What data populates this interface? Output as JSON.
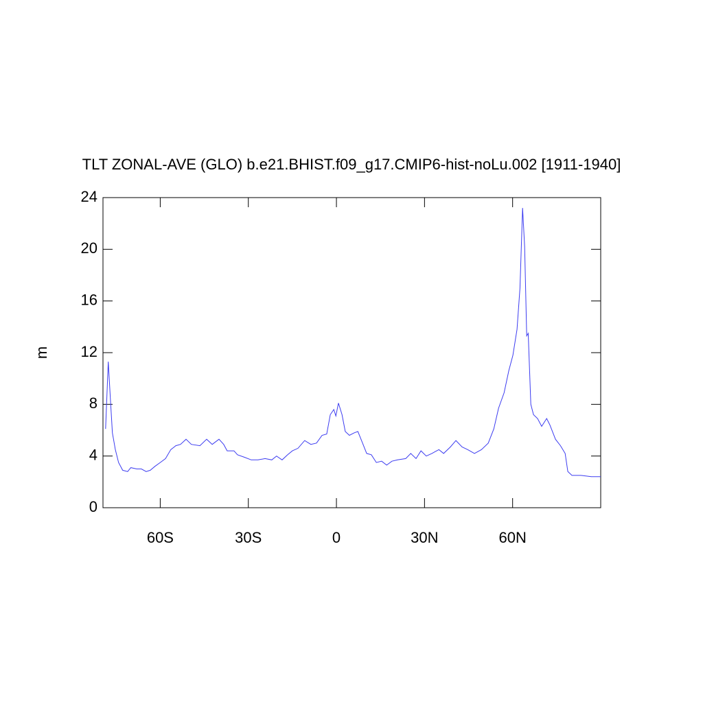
{
  "chart_data": {
    "type": "line",
    "title": "TLT ZONAL-AVE (GLO) b.e21.BHIST.f09_g17.CMIP6-hist-noLu.002 [1911-1940]",
    "y_label": "m",
    "x": [
      -78.6,
      -77.7,
      -77,
      -76.3,
      -75.3,
      -74.2,
      -72.8,
      -71.1,
      -70,
      -68,
      -66.4,
      -64.8,
      -63.4,
      -61.8,
      -60,
      -58.2,
      -56.4,
      -54.7,
      -53.1,
      -51.2,
      -49.4,
      -46.5,
      -44.2,
      -42.3,
      -40,
      -38.4,
      -37.2,
      -34.9,
      -33.7,
      -31.3,
      -29,
      -26.7,
      -24.3,
      -22,
      -20.4,
      -18.5,
      -16.6,
      -15,
      -13.1,
      -10.8,
      -8.7,
      -6.8,
      -4.9,
      -3.3,
      -2.1,
      -0.9,
      -0.2,
      0.7,
      1.9,
      3,
      4.4,
      6.1,
      7.3,
      8.9,
      10.3,
      11.9,
      13.6,
      15.4,
      17.1,
      18.9,
      20.8,
      23.6,
      25.3,
      27.1,
      28.8,
      30.6,
      32.5,
      34.9,
      36.5,
      38.8,
      40.7,
      42.8,
      44.7,
      47,
      49.4,
      51.7,
      53.6,
      55.2,
      57.1,
      58.7,
      60.1,
      61.5,
      62.5,
      63.4,
      64.1,
      64.8,
      65.3,
      66.2,
      67.1,
      68.5,
      69.9,
      71.6,
      72.7,
      74.6,
      76.3,
      77.9,
      78.8,
      80.2,
      83.3,
      86.8,
      90
    ],
    "series": [
      {
        "name": "TLT",
        "color": "#3b3bf0",
        "values": [
          6.1,
          11.3,
          8.5,
          5.8,
          4.5,
          3.5,
          2.9,
          2.8,
          3.1,
          3.0,
          3.0,
          2.8,
          2.9,
          3.2,
          3.5,
          3.8,
          4.5,
          4.8,
          4.9,
          5.3,
          4.9,
          4.8,
          5.3,
          4.9,
          5.3,
          4.9,
          4.4,
          4.4,
          4.1,
          3.9,
          3.7,
          3.7,
          3.8,
          3.7,
          4.0,
          3.7,
          4.1,
          4.4,
          4.6,
          5.2,
          4.9,
          5.0,
          5.6,
          5.7,
          7.2,
          7.6,
          7.1,
          8.1,
          7.2,
          5.9,
          5.6,
          5.8,
          5.9,
          5.0,
          4.2,
          4.1,
          3.5,
          3.6,
          3.3,
          3.6,
          3.7,
          3.8,
          4.2,
          3.8,
          4.4,
          4.0,
          4.2,
          4.5,
          4.2,
          4.7,
          5.2,
          4.7,
          4.5,
          4.2,
          4.5,
          5.0,
          6.1,
          7.7,
          8.9,
          10.6,
          11.8,
          13.8,
          17.0,
          23.2,
          20.2,
          13.3,
          13.5,
          8.0,
          7.2,
          6.9,
          6.3,
          6.9,
          6.4,
          5.3,
          4.8,
          4.2,
          2.8,
          2.5,
          2.5,
          2.4,
          2.4
        ]
      }
    ],
    "xlim": [
      -79.5,
      90
    ],
    "xticks": [
      {
        "value": -60,
        "label": "60S"
      },
      {
        "value": -30,
        "label": "30S"
      },
      0,
      {
        "value": 30,
        "label": "30N"
      },
      {
        "value": 60,
        "label": "60N"
      }
    ],
    "ylim": [
      0,
      24
    ],
    "yticks": [
      0,
      4,
      8,
      12,
      16,
      20,
      24
    ]
  }
}
